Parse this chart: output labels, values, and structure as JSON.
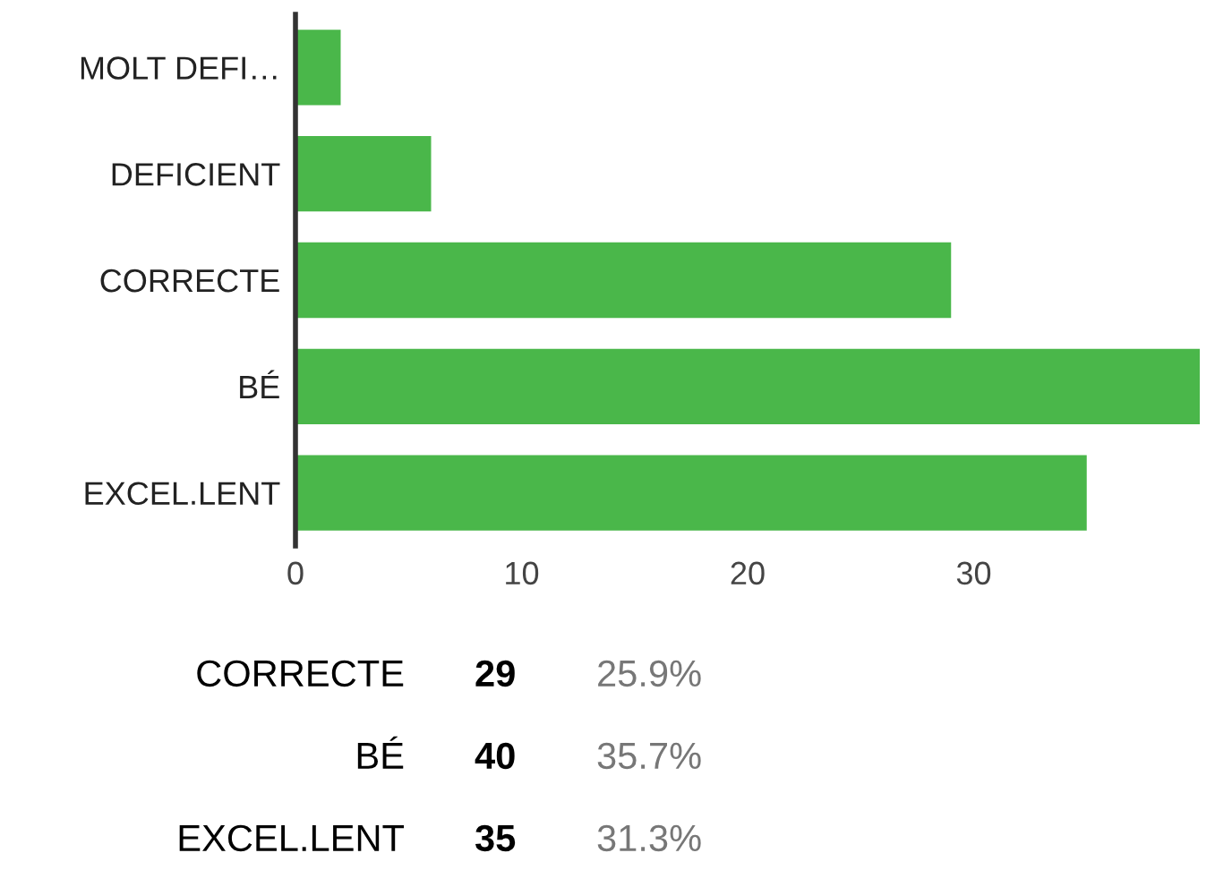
{
  "chart_data": {
    "type": "bar",
    "orientation": "horizontal",
    "categories": [
      "MOLT DEFI…",
      "DEFICIENT",
      "CORRECTE",
      "BÉ",
      "EXCEL.LENT"
    ],
    "values": [
      2,
      6,
      29,
      40,
      35
    ],
    "color": "#4ab74a",
    "xlim": [
      0,
      40
    ],
    "xticks": [
      0,
      10,
      20,
      30
    ],
    "grid": false,
    "annotations": [
      "CORRECTE",
      "29",
      "25.9%",
      "BÉ",
      "40",
      "35.7%",
      "EXCEL.LENT",
      "35",
      "31.3%"
    ]
  }
}
